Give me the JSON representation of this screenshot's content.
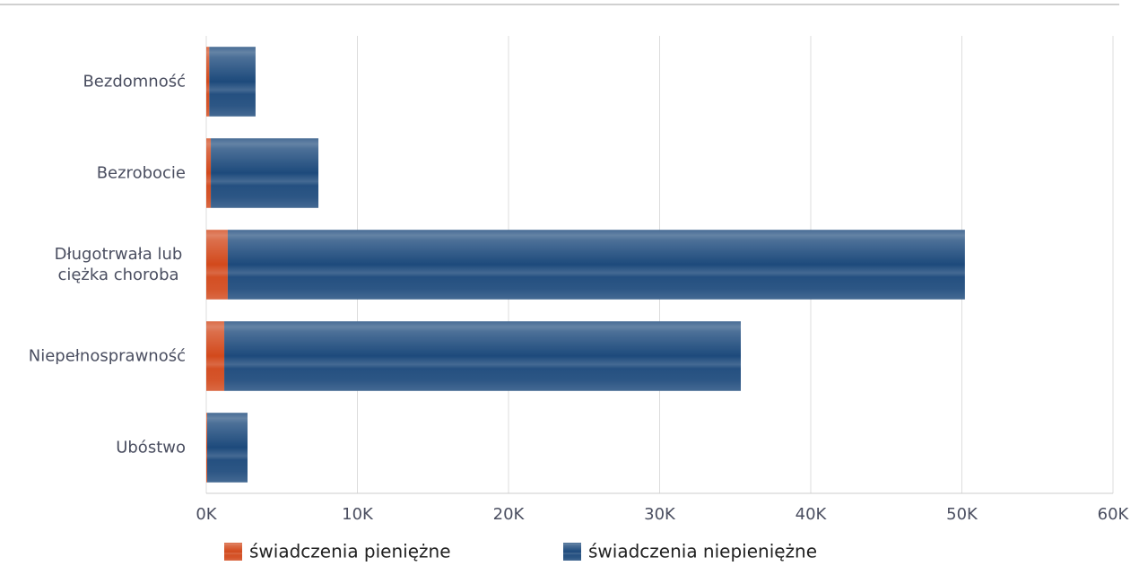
{
  "chart_data": {
    "type": "stacked_barh",
    "categories": [
      "Bezdomność",
      "Bezrobocie",
      "Długotrwała lub ciężka choroba",
      "Niepełnosprawność",
      "Ubóstwo"
    ],
    "series": [
      {
        "name": "świadczenia pieniężne",
        "color": "#d2491c",
        "values": [
          200,
          300,
          1420,
          1190,
          60
        ]
      },
      {
        "name": "świadczenia niepieniężne",
        "color": "#1d4a7c",
        "values": [
          3060,
          7120,
          48780,
          34180,
          2670
        ]
      }
    ],
    "xlim": [
      0,
      60000
    ],
    "xticks": [
      {
        "value": 0,
        "label": "0K"
      },
      {
        "value": 10000,
        "label": "10K"
      },
      {
        "value": 20000,
        "label": "20K"
      },
      {
        "value": 30000,
        "label": "30K"
      },
      {
        "value": 40000,
        "label": "40K"
      },
      {
        "value": 50000,
        "label": "50K"
      },
      {
        "value": 60000,
        "label": "60K"
      }
    ],
    "grid": true,
    "legend": "bottom"
  }
}
